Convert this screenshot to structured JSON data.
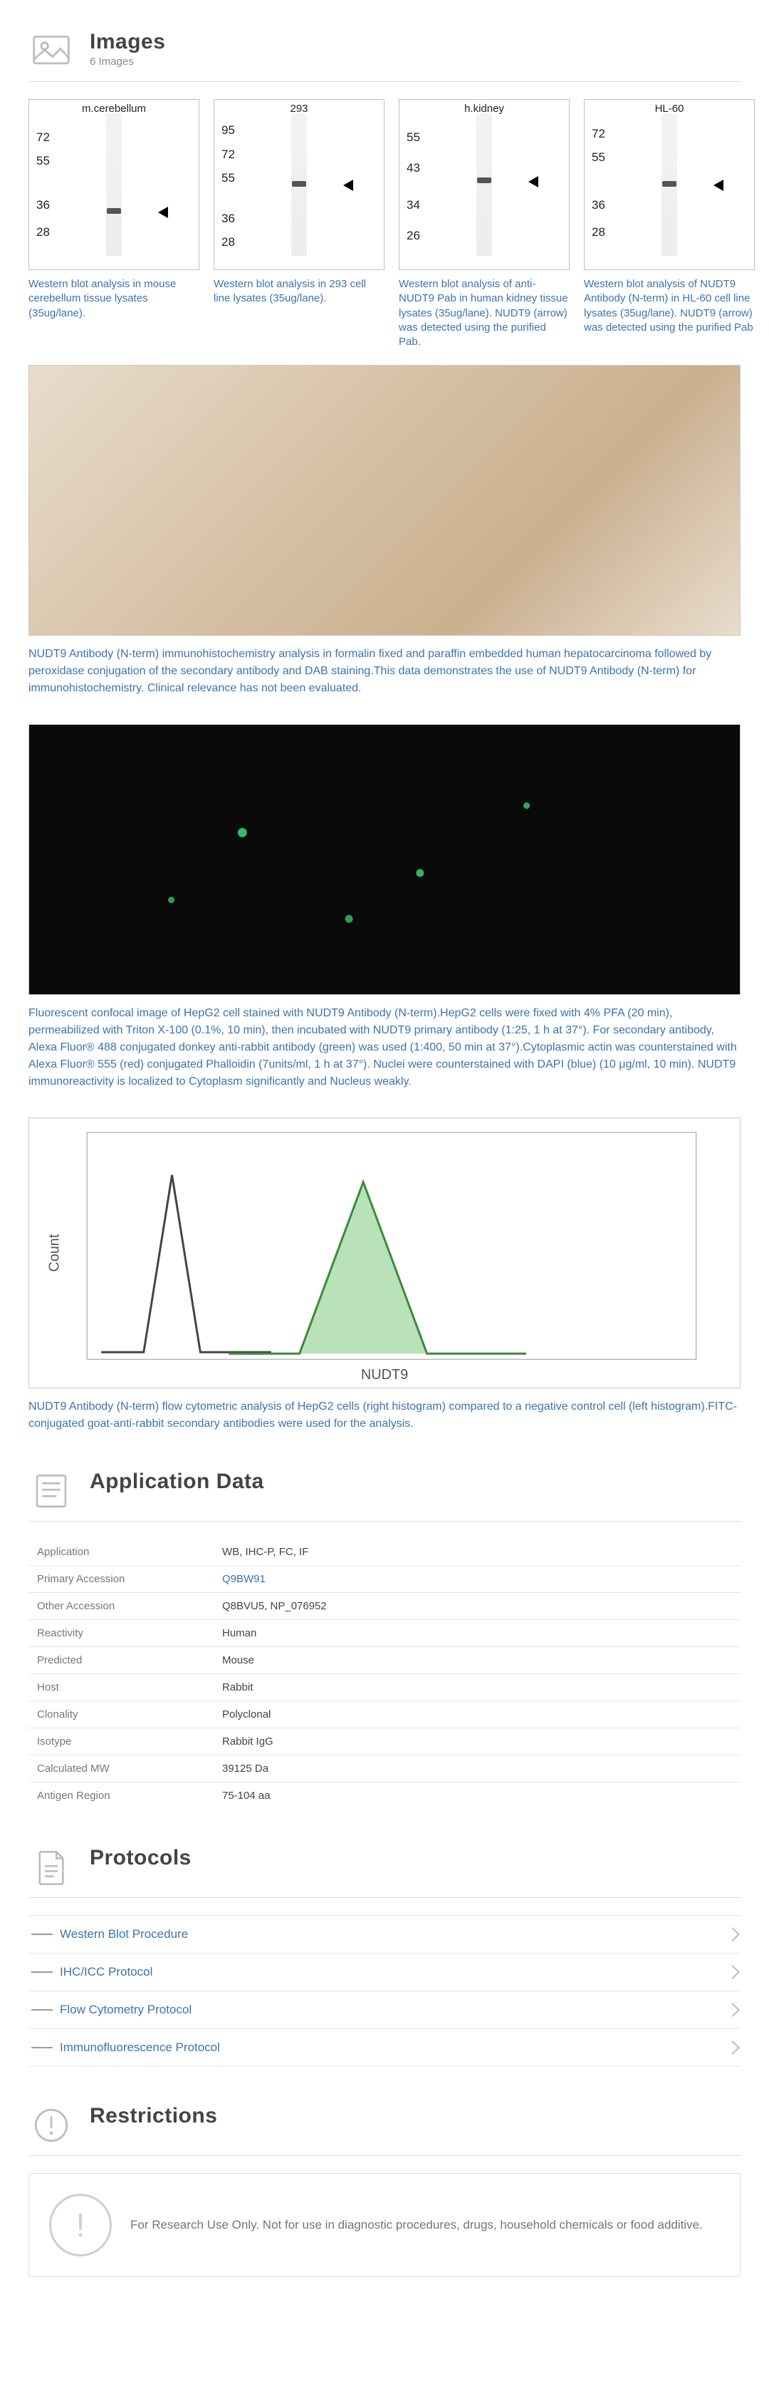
{
  "sections": {
    "images": {
      "title": "Images",
      "count_text": "6 Images"
    },
    "appdata": {
      "title": "Application Data"
    },
    "protocols": {
      "title": "Protocols"
    },
    "restrictions": {
      "title": "Restrictions"
    }
  },
  "wb_lanes": [
    {
      "toplabel": "m.cerebellum",
      "markers": [
        "72",
        "55",
        "36",
        "28"
      ],
      "marker_top_pct": [
        18,
        32,
        58,
        74
      ],
      "band_top_pct": 64,
      "arrow_top_pct": 63
    },
    {
      "toplabel": "293",
      "markers": [
        "95",
        "72",
        "55",
        "36",
        "28"
      ],
      "marker_top_pct": [
        14,
        28,
        42,
        66,
        80
      ],
      "band_top_pct": 48,
      "arrow_top_pct": 47
    },
    {
      "toplabel": "h.kidney",
      "markers": [
        "55",
        "43",
        "34",
        "26"
      ],
      "marker_top_pct": [
        18,
        36,
        58,
        76
      ],
      "band_top_pct": 46,
      "arrow_top_pct": 45
    },
    {
      "toplabel": "HL-60",
      "markers": [
        "72",
        "55",
        "36",
        "28"
      ],
      "marker_top_pct": [
        16,
        30,
        58,
        74
      ],
      "band_top_pct": 48,
      "arrow_top_pct": 47
    }
  ],
  "app_captions": [
    "Western blot analysis in mouse cerebellum tissue lysates (35ug/lane).",
    "Western blot analysis in 293 cell line lysates (35ug/lane).",
    "Western blot analysis of anti-NUDT9 Pab in human kidney tissue lysates (35ug/lane). NUDT9 (arrow) was detected using the purified Pab.",
    "Western blot analysis of NUDT9 Antibody (N-term) in HL-60 cell line lysates (35ug/lane). NUDT9 (arrow) was detected using the purified Pab"
  ],
  "ihc_caption": "NUDT9 Antibody (N-term) immunohistochemistry analysis in formalin fixed and paraffin embedded human hepatocarcinoma followed by peroxidase conjugation of the secondary antibody and DAB staining.This data demonstrates the use of NUDT9 Antibody (N-term) for immunohistochemistry. Clinical relevance has not been evaluated.",
  "if_caption": "Fluorescent confocal image of HepG2 cell stained with NUDT9 Antibody (N-term).HepG2 cells were fixed with 4% PFA (20 min), permeabilized with Triton X-100 (0.1%, 10 min), then incubated with NUDT9 primary antibody (1:25, 1 h at 37°). For secondary antibody, Alexa Fluor® 488 conjugated donkey anti-rabbit antibody (green) was used (1:400, 50 min at 37°).Cytoplasmic actin was counterstained with Alexa Fluor® 555 (red) conjugated Phalloidin (7units/ml, 1 h at 37°). Nuclei were counterstained with DAPI (blue) (10 μg/ml, 10 min). NUDT9 immunoreactivity is localized to Cytoplasm significantly and Nucleus weakly.",
  "fc_caption": "NUDT9 Antibody (N-term) flow cytometric analysis of HepG2 cells (right histogram) compared to a negative control cell (left histogram).FITC-conjugated goat-anti-rabbit secondary antibodies were used for the analysis.",
  "app_table": {
    "rows": [
      [
        "Application",
        "WB, IHC-P, FC, IF"
      ],
      [
        "Primary Accession",
        "Q9BW91"
      ],
      [
        "Other Accession",
        "Q8BVU5, NP_076952"
      ],
      [
        "Reactivity",
        "Human"
      ],
      [
        "Predicted",
        "Mouse"
      ],
      [
        "Host",
        "Rabbit"
      ],
      [
        "Clonality",
        "Polyclonal"
      ],
      [
        "Isotype",
        "Rabbit IgG"
      ],
      [
        "Calculated MW",
        "39125 Da"
      ],
      [
        "Antigen Region",
        "75-104 aa"
      ]
    ]
  },
  "protocols_list": [
    "Western Blot Procedure",
    "IHC/ICC Protocol",
    "Flow Cytometry Protocol",
    "Immunofluorescence Protocol"
  ],
  "restriction_text": "For Research Use Only. Not for use in diagnostic procedures, drugs, household chemicals or food additive.",
  "colors": {
    "link": "#3b73af",
    "muted": "#888888",
    "border": "#dcdcdc"
  }
}
